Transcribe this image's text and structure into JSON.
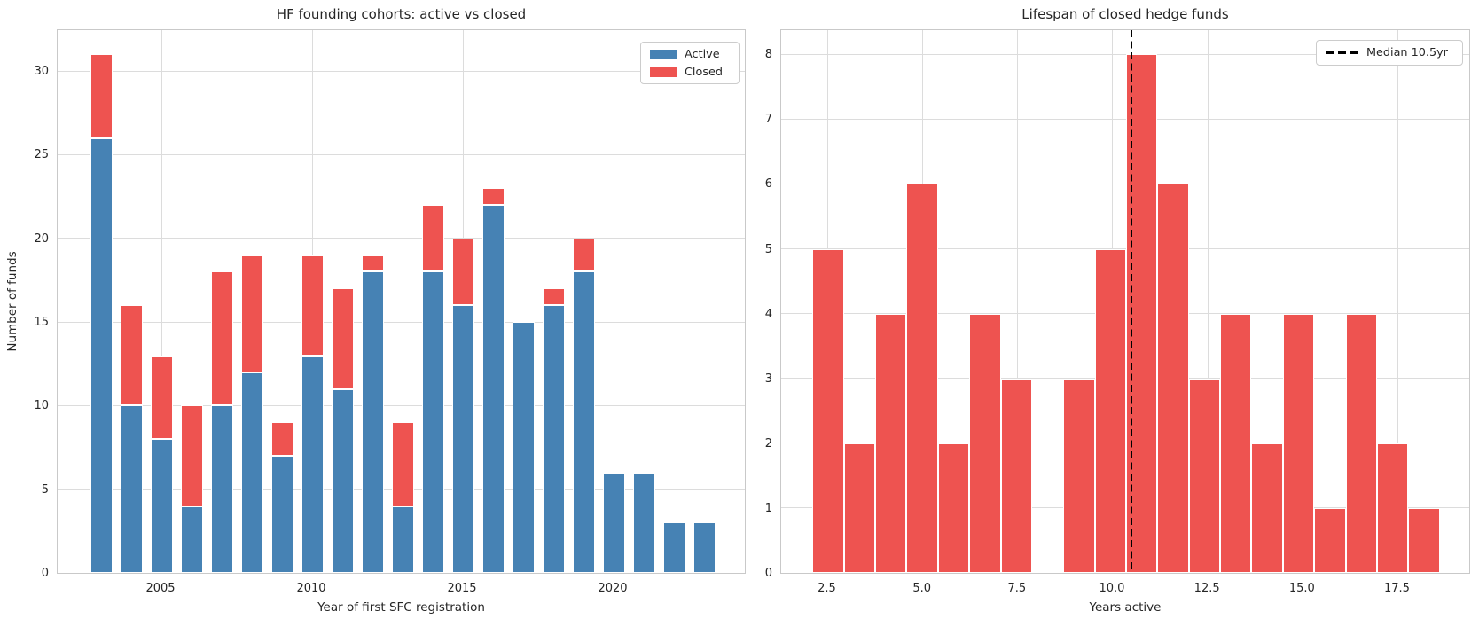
{
  "figure": {
    "background": "#ffffff",
    "text_color": "#262626",
    "grid_color": "#dcdcdc",
    "spine_color": "#c9c9c9"
  },
  "colors": {
    "active": "#4682b4",
    "closed": "#ee5350",
    "median_line": "#000000"
  },
  "chart_data": [
    {
      "type": "bar",
      "title": "HF founding cohorts: active vs closed",
      "xlabel": "Year of first SFC registration",
      "ylabel": "Number of funds",
      "stacked": true,
      "legend_position": "upper right",
      "grid": true,
      "categories": [
        2003,
        2004,
        2005,
        2006,
        2007,
        2008,
        2009,
        2010,
        2011,
        2012,
        2013,
        2014,
        2015,
        2016,
        2017,
        2018,
        2019,
        2020,
        2021,
        2022,
        2023
      ],
      "series": [
        {
          "name": "Active",
          "color_key": "active",
          "values": [
            26,
            10,
            8,
            4,
            10,
            12,
            7,
            13,
            11,
            18,
            4,
            18,
            16,
            22,
            15,
            16,
            18,
            6,
            6,
            3,
            3
          ]
        },
        {
          "name": "Closed",
          "color_key": "closed",
          "values": [
            5,
            6,
            5,
            6,
            8,
            7,
            2,
            6,
            6,
            1,
            5,
            4,
            4,
            1,
            0,
            1,
            2,
            0,
            0,
            0,
            0
          ]
        }
      ],
      "totals": [
        31,
        16,
        13,
        10,
        18,
        19,
        9,
        19,
        17,
        19,
        9,
        22,
        20,
        23,
        15,
        17,
        20,
        6,
        6,
        3,
        3
      ],
      "ylim": [
        0,
        32.55
      ],
      "yticks": [
        0,
        5,
        10,
        15,
        20,
        25,
        30
      ],
      "xticks": [
        2005,
        2010,
        2015,
        2020
      ],
      "xtick_labels": [
        "2005",
        "2010",
        "2015",
        "2020"
      ]
    },
    {
      "type": "histogram",
      "title": "Lifespan of closed hedge funds",
      "xlabel": "Years active",
      "ylabel": "",
      "grid": true,
      "legend_position": "upper right",
      "bin_start": 2.1,
      "bin_width": 0.825,
      "counts": [
        5,
        2,
        4,
        6,
        2,
        4,
        3,
        0,
        3,
        5,
        8,
        6,
        3,
        4,
        2,
        4,
        1,
        4,
        2,
        1
      ],
      "total": 69,
      "xlim": [
        1.275,
        19.425
      ],
      "ylim": [
        0,
        8.4
      ],
      "yticks": [
        0,
        1,
        2,
        3,
        4,
        5,
        6,
        7,
        8
      ],
      "xticks": [
        2.5,
        5.0,
        7.5,
        10.0,
        12.5,
        15.0,
        17.5
      ],
      "xtick_labels": [
        "2.5",
        "5.0",
        "7.5",
        "10.0",
        "12.5",
        "15.0",
        "17.5"
      ],
      "median": {
        "value": 10.5,
        "label": "Median 10.5yr"
      }
    }
  ]
}
